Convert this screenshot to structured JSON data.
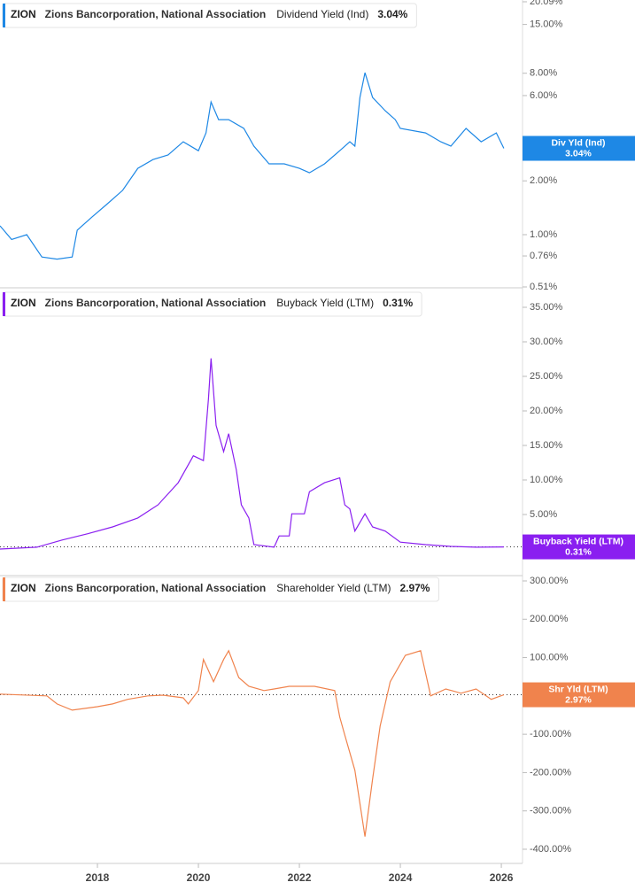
{
  "chart_data": [
    {
      "type": "line",
      "ticker": "ZION",
      "company": "Zions Bancorporation, National Association",
      "log_scale": true,
      "price_line": false,
      "current": {
        "tag": "Div Yld (Ind)",
        "value": 3.04,
        "label": "3.04%"
      },
      "x": [
        2016.07,
        2016.3,
        2016.6,
        2016.9,
        2017.2,
        2017.5,
        2017.6,
        2017.9,
        2018.2,
        2018.5,
        2018.8,
        2019.1,
        2019.4,
        2019.7,
        2020.0,
        2020.15,
        2020.25,
        2020.4,
        2020.6,
        2020.9,
        2021.1,
        2021.4,
        2021.7,
        2022.0,
        2022.2,
        2022.5,
        2022.8,
        2023.0,
        2023.1,
        2023.2,
        2023.3,
        2023.45,
        2023.7,
        2023.9,
        2024.0,
        2024.5,
        2024.8,
        2025.0,
        2025.3,
        2025.6,
        2025.9,
        2026.05
      ],
      "series": [
        {
          "name": "Dividend Yield (Ind)",
          "color": "#1e88e5",
          "values": [
            1.12,
            0.94,
            1.0,
            0.75,
            0.73,
            0.75,
            1.06,
            1.26,
            1.49,
            1.77,
            2.35,
            2.63,
            2.79,
            3.31,
            2.95,
            3.71,
            5.53,
            4.4,
            4.4,
            3.93,
            3.13,
            2.49,
            2.49,
            2.35,
            2.22,
            2.49,
            2.95,
            3.31,
            3.13,
            5.85,
            8.06,
            5.85,
            4.94,
            4.4,
            3.93,
            3.71,
            3.31,
            3.13,
            3.93,
            3.31,
            3.71,
            3.04
          ]
        }
      ],
      "xlim": [
        2016.07,
        2026.42
      ],
      "ylim": [
        0.51,
        20.09
      ],
      "yticks": [
        {
          "value": 20.09,
          "label": "20.09%"
        },
        {
          "value": 15,
          "label": "15.00%"
        },
        {
          "value": 8,
          "label": "8.00%"
        },
        {
          "value": 6,
          "label": "6.00%"
        },
        {
          "value": 2,
          "label": "2.00%"
        },
        {
          "value": 1,
          "label": "1.00%"
        },
        {
          "value": 0.76,
          "label": "0.76%"
        },
        {
          "value": 0.51,
          "label": "0.51%"
        }
      ]
    },
    {
      "type": "line",
      "ticker": "ZION",
      "company": "Zions Bancorporation, National Association",
      "log_scale": false,
      "price_line": true,
      "current": {
        "tag": "Buyback Yield (LTM)",
        "value": 0.31,
        "label": "0.31%"
      },
      "x": [
        2016.07,
        2016.8,
        2017.3,
        2017.8,
        2018.3,
        2018.8,
        2019.2,
        2019.6,
        2019.9,
        2020.1,
        2020.2,
        2020.25,
        2020.35,
        2020.5,
        2020.6,
        2020.75,
        2020.85,
        2021.0,
        2021.1,
        2021.5,
        2021.6,
        2021.8,
        2021.85,
        2022.1,
        2022.2,
        2022.5,
        2022.8,
        2022.9,
        2023.0,
        2023.1,
        2023.3,
        2023.45,
        2023.7,
        2024.0,
        2024.5,
        2025.0,
        2025.5,
        2026.05
      ],
      "series": [
        {
          "name": "Buyback Yield (LTM)",
          "color": "#8a1ff0",
          "values": [
            0,
            0.26,
            1.3,
            2.2,
            3.2,
            4.5,
            6.4,
            9.6,
            13.5,
            12.8,
            21.8,
            27.6,
            17.9,
            14.1,
            16.7,
            11.5,
            6.4,
            4.5,
            0.64,
            0.26,
            1.9,
            1.9,
            5.1,
            5.1,
            8.3,
            9.6,
            10.3,
            6.4,
            5.8,
            2.6,
            5.1,
            3.2,
            2.6,
            1.0,
            0.64,
            0.38,
            0.26,
            0.31
          ]
        }
      ],
      "xlim": [
        2016.07,
        2026.42
      ],
      "ylim": [
        -3.85,
        37.18
      ],
      "yticks": [
        {
          "value": 35,
          "label": "35.00%"
        },
        {
          "value": 30,
          "label": "30.00%"
        },
        {
          "value": 25,
          "label": "25.00%"
        },
        {
          "value": 20,
          "label": "20.00%"
        },
        {
          "value": 15,
          "label": "15.00%"
        },
        {
          "value": 10,
          "label": "10.00%"
        },
        {
          "value": 5,
          "label": "5.00%"
        }
      ]
    },
    {
      "type": "line",
      "ticker": "ZION",
      "company": "Zions Bancorporation, National Association",
      "log_scale": false,
      "price_line": true,
      "current": {
        "tag": "Shr Yld (LTM)",
        "value": 2.97,
        "label": "2.97%"
      },
      "x": [
        2016.07,
        2017.0,
        2017.2,
        2017.5,
        2018.0,
        2018.3,
        2018.6,
        2019.0,
        2019.3,
        2019.7,
        2019.8,
        2020.0,
        2020.1,
        2020.3,
        2020.5,
        2020.6,
        2020.8,
        2021.0,
        2021.3,
        2021.5,
        2021.8,
        2022.3,
        2022.7,
        2022.8,
        2022.9,
        2023.1,
        2023.3,
        2023.45,
        2023.6,
        2023.8,
        2024.1,
        2024.4,
        2024.6,
        2024.9,
        2025.2,
        2025.5,
        2025.8,
        2026.05
      ],
      "series": [
        {
          "name": "Shareholder Yield (LTM)",
          "color": "#f0834d",
          "values": [
            4.6,
            0,
            -21,
            -37,
            -28,
            -21,
            -9,
            0,
            2,
            -5,
            -21,
            14,
            95,
            37,
            95,
            118,
            48,
            25,
            14,
            18,
            25,
            25,
            14,
            -55,
            -102,
            -194,
            -367,
            -217,
            -79,
            37,
            106,
            118,
            0,
            18,
            7,
            18,
            -9,
            2.97
          ]
        }
      ],
      "xlim": [
        2016.07,
        2026.42
      ],
      "ylim": [
        -437,
        309.2
      ],
      "xticks": [
        2018,
        2020,
        2022,
        2024,
        2026
      ],
      "yticks": [
        {
          "value": 300,
          "label": "300.00%"
        },
        {
          "value": 200,
          "label": "200.00%"
        },
        {
          "value": 100,
          "label": "100.00%"
        },
        {
          "value": 0,
          "label": "0.00%"
        },
        {
          "value": -100,
          "label": "-100.00%"
        },
        {
          "value": -200,
          "label": "-200.00%"
        },
        {
          "value": -300,
          "label": "-300.00%"
        },
        {
          "value": -400,
          "label": "-400.00%"
        }
      ]
    }
  ]
}
